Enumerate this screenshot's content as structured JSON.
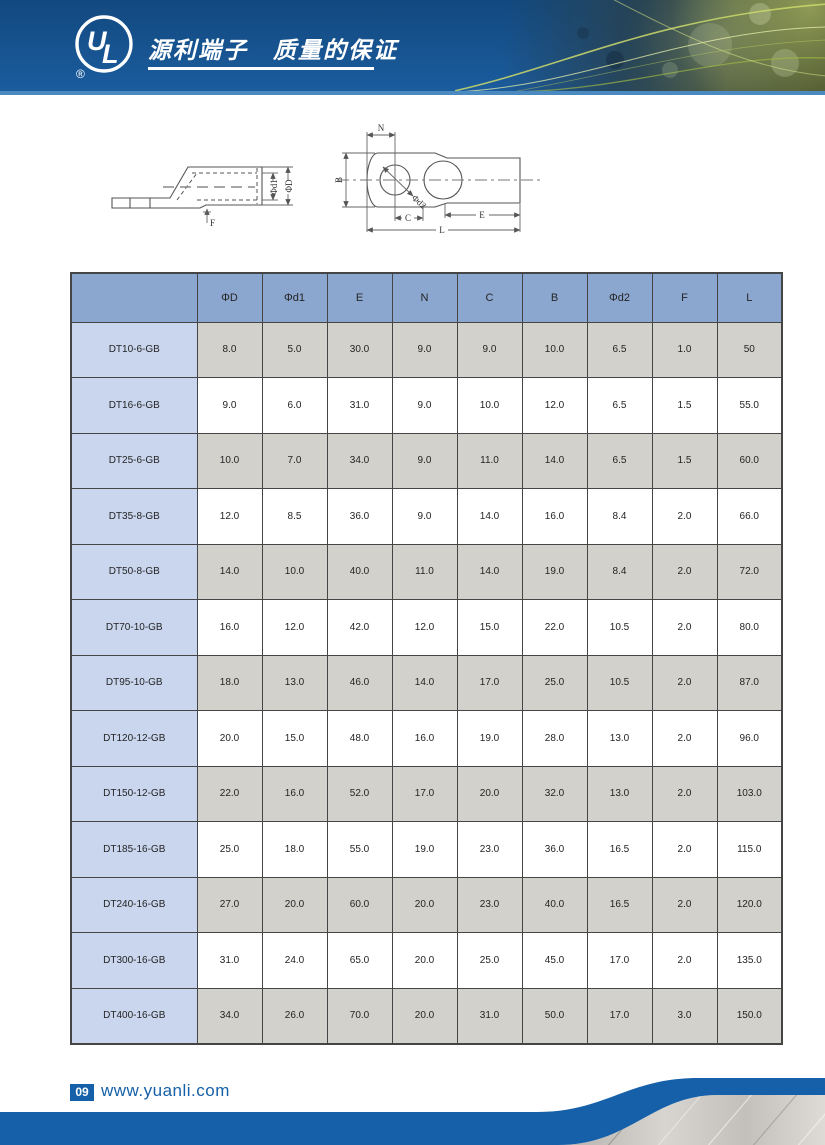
{
  "header": {
    "logo": {
      "letter_u": "U",
      "letter_l": "L",
      "registered": "®"
    },
    "title": "源利端子　质量的保证"
  },
  "diagram": {
    "side_view": {
      "phi_d1": "Φd1",
      "phi_D": "ΦD",
      "F": "F"
    },
    "top_view": {
      "N": "N",
      "B": "B",
      "C": "C",
      "E": "E",
      "L": "L",
      "phi_d2": "Φd2"
    }
  },
  "table": {
    "columns": [
      "ΦD",
      "Φd1",
      "E",
      "N",
      "C",
      "B",
      "Φd2",
      "F",
      "L"
    ],
    "rows": [
      {
        "model": "DT10-6-GB",
        "values": [
          "8.0",
          "5.0",
          "30.0",
          "9.0",
          "9.0",
          "10.0",
          "6.5",
          "1.0",
          "50"
        ]
      },
      {
        "model": "DT16-6-GB",
        "values": [
          "9.0",
          "6.0",
          "31.0",
          "9.0",
          "10.0",
          "12.0",
          "6.5",
          "1.5",
          "55.0"
        ]
      },
      {
        "model": "DT25-6-GB",
        "values": [
          "10.0",
          "7.0",
          "34.0",
          "9.0",
          "11.0",
          "14.0",
          "6.5",
          "1.5",
          "60.0"
        ]
      },
      {
        "model": "DT35-8-GB",
        "values": [
          "12.0",
          "8.5",
          "36.0",
          "9.0",
          "14.0",
          "16.0",
          "8.4",
          "2.0",
          "66.0"
        ]
      },
      {
        "model": "DT50-8-GB",
        "values": [
          "14.0",
          "10.0",
          "40.0",
          "11.0",
          "14.0",
          "19.0",
          "8.4",
          "2.0",
          "72.0"
        ]
      },
      {
        "model": "DT70-10-GB",
        "values": [
          "16.0",
          "12.0",
          "42.0",
          "12.0",
          "15.0",
          "22.0",
          "10.5",
          "2.0",
          "80.0"
        ]
      },
      {
        "model": "DT95-10-GB",
        "values": [
          "18.0",
          "13.0",
          "46.0",
          "14.0",
          "17.0",
          "25.0",
          "10.5",
          "2.0",
          "87.0"
        ]
      },
      {
        "model": "DT120-12-GB",
        "values": [
          "20.0",
          "15.0",
          "48.0",
          "16.0",
          "19.0",
          "28.0",
          "13.0",
          "2.0",
          "96.0"
        ]
      },
      {
        "model": "DT150-12-GB",
        "values": [
          "22.0",
          "16.0",
          "52.0",
          "17.0",
          "20.0",
          "32.0",
          "13.0",
          "2.0",
          "103.0"
        ]
      },
      {
        "model": "DT185-16-GB",
        "values": [
          "25.0",
          "18.0",
          "55.0",
          "19.0",
          "23.0",
          "36.0",
          "16.5",
          "2.0",
          "115.0"
        ]
      },
      {
        "model": "DT240-16-GB",
        "values": [
          "27.0",
          "20.0",
          "60.0",
          "20.0",
          "23.0",
          "40.0",
          "16.5",
          "2.0",
          "120.0"
        ]
      },
      {
        "model": "DT300-16-GB",
        "values": [
          "31.0",
          "24.0",
          "65.0",
          "20.0",
          "25.0",
          "45.0",
          "17.0",
          "2.0",
          "135.0"
        ]
      },
      {
        "model": "DT400-16-GB",
        "values": [
          "34.0",
          "26.0",
          "70.0",
          "20.0",
          "31.0",
          "50.0",
          "17.0",
          "3.0",
          "150.0"
        ]
      }
    ]
  },
  "footer": {
    "page_number": "09",
    "website": "www.yuanli.com"
  },
  "colors": {
    "brand_blue": "#1560a8",
    "header_blue_top": "#12497f",
    "header_blue_bottom": "#1b5c9e",
    "accent_light_blue": "#4b8ac0",
    "table_header_bg": "#8ca7cf",
    "model_column_bg": "#c9d6ee",
    "row_gray": "#d2d1cc"
  }
}
